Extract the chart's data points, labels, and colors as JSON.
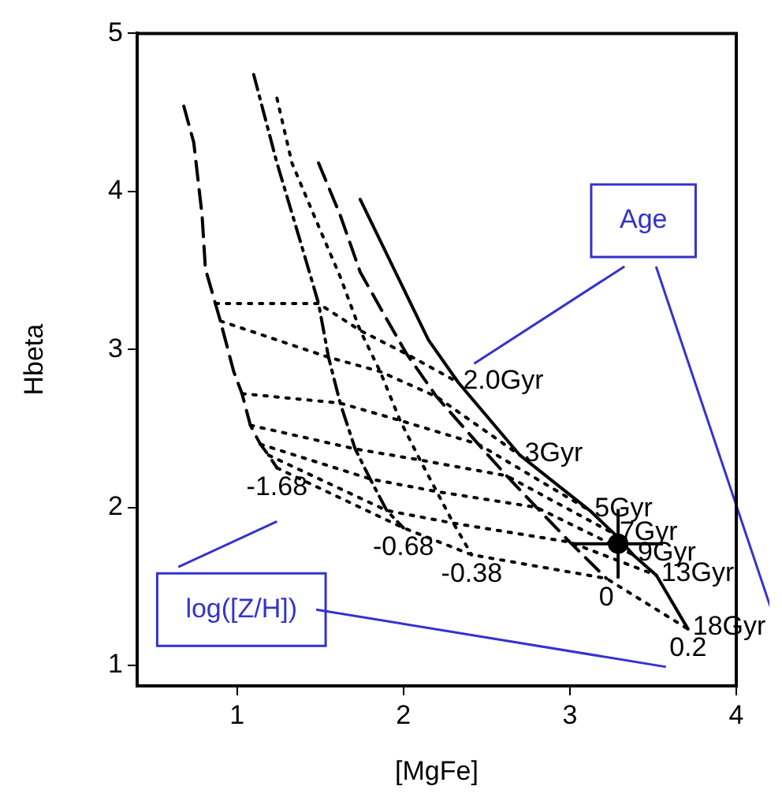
{
  "chart_data": {
    "type": "line",
    "xlabel": "[MgFe]",
    "ylabel": "Hbeta",
    "xlim": [
      0.4,
      4
    ],
    "ylim": [
      0.87,
      5
    ],
    "xticks": [
      1,
      2,
      3,
      4
    ],
    "yticks": [
      1,
      2,
      3,
      4,
      5
    ],
    "grid": false,
    "legend": false,
    "marker": "none",
    "annotations": [
      "Age",
      "log([Z/H])"
    ],
    "series": [
      {
        "name": "-1.68",
        "color": "#000000",
        "line_style": "dashed",
        "x": [
          0.68,
          0.74,
          0.79,
          0.81,
          0.87,
          0.9,
          0.98,
          1.03,
          1.08,
          1.14,
          1.19,
          1.24
        ],
        "values": [
          4.54,
          4.31,
          3.85,
          3.51,
          3.29,
          3.18,
          2.86,
          2.72,
          2.52,
          2.4,
          2.33,
          2.25
        ]
      },
      {
        "name": "-0.68",
        "color": "#000000",
        "line_style": "dashdot",
        "x": [
          1.1,
          1.24,
          1.39,
          1.49,
          1.55,
          1.62,
          1.71,
          1.8,
          1.9,
          2.0
        ],
        "values": [
          4.74,
          4.18,
          3.65,
          3.29,
          2.95,
          2.66,
          2.37,
          2.18,
          1.98,
          1.87
        ]
      },
      {
        "name": "-0.38",
        "color": "#000000",
        "line_style": "dotted",
        "x": [
          1.24,
          1.33,
          1.49,
          1.62,
          1.74,
          1.86,
          1.98,
          2.1,
          2.2,
          2.3,
          2.41
        ],
        "values": [
          4.59,
          4.18,
          3.78,
          3.46,
          3.12,
          2.86,
          2.55,
          2.3,
          2.1,
          1.9,
          1.7
        ]
      },
      {
        "name": "0",
        "color": "#000000",
        "line_style": "dashed",
        "x": [
          1.49,
          1.62,
          1.74,
          1.9,
          2.02,
          2.2,
          2.45,
          2.62,
          2.8,
          3.0,
          3.22
        ],
        "values": [
          4.18,
          3.85,
          3.49,
          3.19,
          2.97,
          2.7,
          2.4,
          2.2,
          2.0,
          1.78,
          1.55
        ]
      },
      {
        "name": "0.2",
        "color": "#000000",
        "line_style": "solid",
        "x": [
          1.74,
          2.15,
          2.33,
          2.7,
          3.12,
          3.27,
          3.38,
          3.52,
          3.71
        ],
        "values": [
          3.95,
          3.06,
          2.79,
          2.33,
          1.98,
          1.83,
          1.7,
          1.57,
          1.23
        ]
      },
      {
        "name": "2.0Gyr",
        "color": "#000000",
        "line_style": "dotted",
        "x": [
          0.87,
          1.49,
          1.74,
          2.02,
          2.33
        ],
        "values": [
          3.29,
          3.29,
          3.12,
          2.97,
          2.79
        ]
      },
      {
        "name": "3Gyr",
        "color": "#000000",
        "line_style": "dotted",
        "x": [
          0.9,
          1.55,
          1.86,
          2.2,
          2.7
        ],
        "values": [
          3.18,
          2.95,
          2.86,
          2.7,
          2.33
        ]
      },
      {
        "name": "5Gyr",
        "color": "#000000",
        "line_style": "dotted",
        "x": [
          1.03,
          1.62,
          1.98,
          2.45,
          3.12
        ],
        "values": [
          2.72,
          2.66,
          2.55,
          2.4,
          1.98
        ]
      },
      {
        "name": "7Gyr",
        "color": "#000000",
        "line_style": "dotted",
        "x": [
          1.08,
          1.71,
          2.1,
          2.62,
          3.27
        ],
        "values": [
          2.52,
          2.37,
          2.3,
          2.2,
          1.83
        ]
      },
      {
        "name": "9Gyr",
        "color": "#000000",
        "line_style": "dotted",
        "x": [
          1.14,
          1.8,
          2.2,
          2.8,
          3.38
        ],
        "values": [
          2.4,
          2.18,
          2.1,
          2.0,
          1.7
        ]
      },
      {
        "name": "13Gyr",
        "color": "#000000",
        "line_style": "dotted",
        "x": [
          1.19,
          1.9,
          2.3,
          3.0,
          3.52
        ],
        "values": [
          2.33,
          1.98,
          1.9,
          1.78,
          1.57
        ]
      },
      {
        "name": "18Gyr",
        "color": "#000000",
        "line_style": "dotted",
        "x": [
          1.24,
          2.0,
          2.41,
          3.22,
          3.71
        ],
        "values": [
          2.25,
          1.87,
          1.7,
          1.55,
          1.23
        ]
      },
      {
        "type": "scatter",
        "color": "#000000",
        "marker": "circle",
        "x": [
          3.29
        ],
        "values": [
          1.77
        ],
        "errors": [
          0.22
        ],
        "xerrors": [
          0.27
        ]
      }
    ]
  }
}
